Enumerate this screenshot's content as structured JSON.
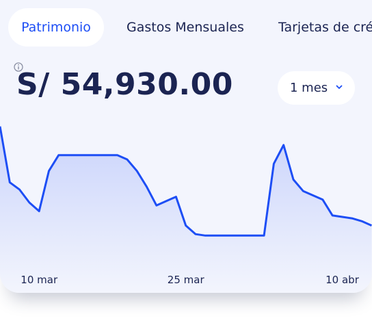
{
  "tabs": [
    "Patrimonio",
    "Gastos Mensuales",
    "Tarjetas de crédito"
  ],
  "balance": "S/ 54,930.00",
  "period": "1 mes",
  "chart_data": {
    "type": "line",
    "color": "#1d4ef5",
    "categories": [
      null,
      null,
      null,
      null,
      "10 mar",
      null,
      null,
      null,
      null,
      null,
      null,
      null,
      null,
      null,
      null,
      null,
      null,
      null,
      null,
      "25 mar",
      null,
      null,
      null,
      null,
      null,
      null,
      null,
      null,
      null,
      null,
      null,
      null,
      null,
      null,
      null,
      "10 abr",
      null,
      null,
      null
    ],
    "values": [
      93,
      54,
      49,
      40,
      34,
      62,
      73,
      73,
      73,
      73,
      73,
      73,
      73,
      70,
      62,
      51,
      38,
      41,
      44,
      24,
      18,
      17,
      17,
      17,
      17,
      17,
      17,
      17,
      67,
      80,
      56,
      48,
      45,
      42,
      31,
      30,
      29,
      27,
      24
    ],
    "ylim": [
      0,
      100
    ]
  }
}
